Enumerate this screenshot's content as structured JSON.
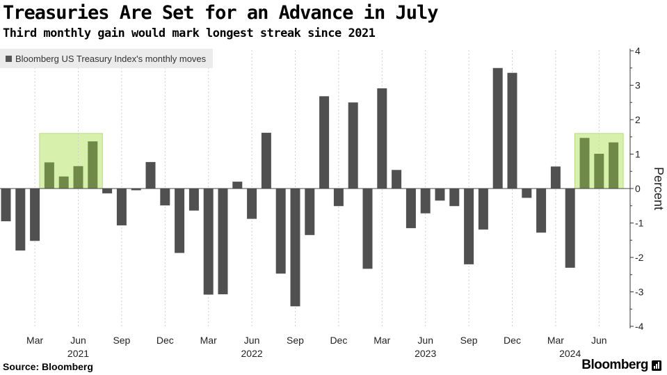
{
  "header": {
    "title": "Treasuries Are Set for an Advance in July",
    "subtitle": "Third monthly gain would mark longest streak since 2021"
  },
  "footer": {
    "source": "Source: Bloomberg",
    "brand": "Bloomberg"
  },
  "colors": {
    "bar": "#505050",
    "highlight_bar": "#6f8a48",
    "highlight_fill": "#d7f0ab",
    "highlight_border": "#b7dc7d",
    "grid": "#cfcfcf"
  },
  "icons": [
    "bloomberg-terminal-icon"
  ],
  "chart_data": {
    "type": "bar",
    "legend": "Bloomberg US Treasury Index's monthly moves",
    "legend_position": "top-left",
    "ylabel": "Percent",
    "ylim": [
      -4,
      4
    ],
    "yticks": [
      4,
      3,
      2,
      1,
      0,
      -1,
      -2,
      -3,
      -4
    ],
    "grid": "vertical dashed at quarters",
    "x_month_labels": [
      "Mar",
      "Jun",
      "Sep",
      "Dec",
      "Mar",
      "Jun",
      "Sep",
      "Dec",
      "Mar",
      "Jun",
      "Sep",
      "Dec",
      "Mar",
      "Jun"
    ],
    "x_month_label_indices": [
      2,
      5,
      8,
      11,
      14,
      17,
      20,
      23,
      26,
      29,
      32,
      35,
      38,
      41
    ],
    "x_year_labels": [
      "2021",
      "2022",
      "2023",
      "2024"
    ],
    "x_year_label_indices": [
      5,
      17,
      29,
      39
    ],
    "categories": [
      "Jan 2021",
      "Feb 2021",
      "Mar 2021",
      "Apr 2021",
      "May 2021",
      "Jun 2021",
      "Jul 2021",
      "Aug 2021",
      "Sep 2021",
      "Oct 2021",
      "Nov 2021",
      "Dec 2021",
      "Jan 2022",
      "Feb 2022",
      "Mar 2022",
      "Apr 2022",
      "May 2022",
      "Jun 2022",
      "Jul 2022",
      "Aug 2022",
      "Sep 2022",
      "Oct 2022",
      "Nov 2022",
      "Dec 2022",
      "Jan 2023",
      "Feb 2023",
      "Mar 2023",
      "Apr 2023",
      "May 2023",
      "Jun 2023",
      "Jul 2023",
      "Aug 2023",
      "Sep 2023",
      "Oct 2023",
      "Nov 2023",
      "Dec 2023",
      "Jan 2024",
      "Feb 2024",
      "Mar 2024",
      "Apr 2024",
      "May 2024",
      "Jun 2024",
      "Jul 2024"
    ],
    "values": [
      -0.95,
      -1.8,
      -1.52,
      0.76,
      0.35,
      0.65,
      1.37,
      -0.14,
      -1.07,
      -0.05,
      0.77,
      -0.49,
      -1.87,
      -0.64,
      -3.08,
      -3.07,
      0.2,
      -0.88,
      1.62,
      -2.47,
      -3.42,
      -1.35,
      2.68,
      -0.51,
      2.5,
      -2.33,
      2.91,
      0.54,
      -1.15,
      -0.72,
      -0.35,
      -0.51,
      -2.2,
      -1.19,
      3.5,
      3.36,
      -0.27,
      -1.28,
      0.64,
      -2.3,
      1.47,
      1.01,
      1.34
    ],
    "highlighted_groups": [
      {
        "label": "Apr–Jul 2021",
        "start_index": 3,
        "end_index": 6
      },
      {
        "label": "May–Jul 2024",
        "start_index": 40,
        "end_index": 42
      }
    ]
  }
}
